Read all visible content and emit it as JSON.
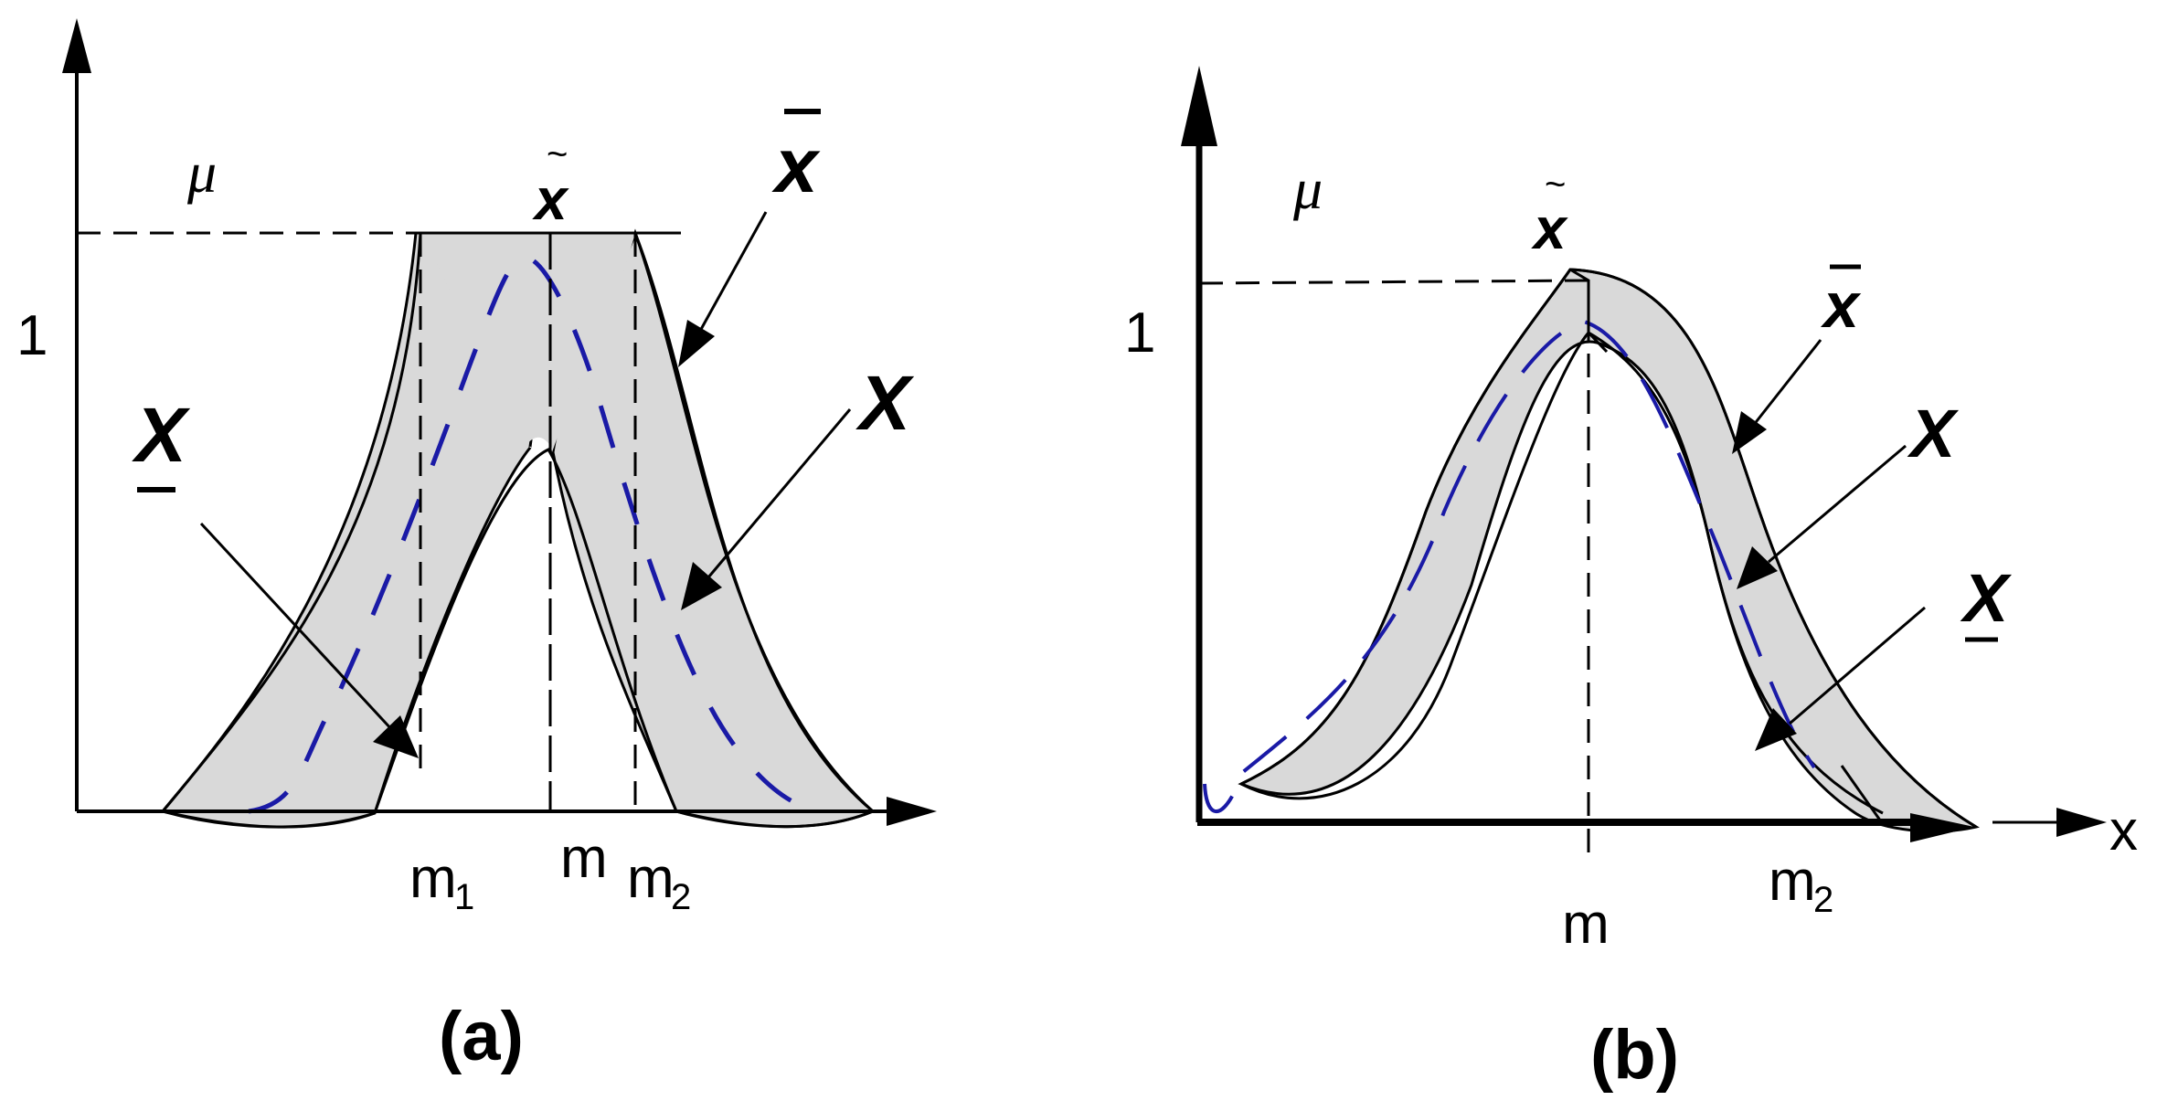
{
  "panel_a": {
    "caption": "(a)",
    "axis_mu": "μ",
    "tick_one": "1",
    "x_ticks": {
      "m1": "m",
      "m1_sub": "1",
      "m": "m",
      "m2": "m",
      "m2_sub": "2"
    },
    "labels": {
      "tilde_x": "x",
      "upper_x": "x",
      "x": "X",
      "lower_x": "X"
    }
  },
  "panel_b": {
    "caption": "(b)",
    "axis_mu": "μ",
    "axis_x": "x",
    "tick_one": "1",
    "x_ticks": {
      "m": "m",
      "m2": "m",
      "m2_sub": "2"
    },
    "labels": {
      "tilde_x": "x",
      "upper_x": "x",
      "x": "X",
      "lower_x": "X"
    }
  },
  "colors": {
    "footprint": "#d9d9d9",
    "embedded": "#1a1aa6",
    "ink": "#000000"
  }
}
